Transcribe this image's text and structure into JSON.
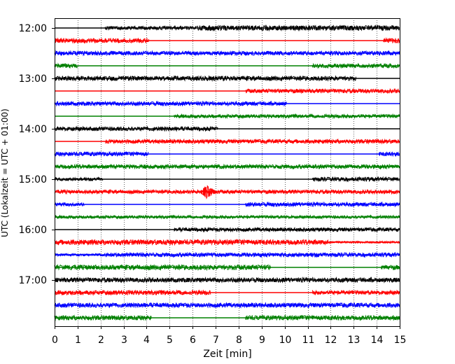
{
  "chart_data": {
    "type": "line",
    "title": "",
    "xlabel": "Zeit  [min]",
    "ylabel": "UTC (Lokalzeit = UTC + 01:00)",
    "xlim": [
      0,
      15
    ],
    "x_ticks": [
      0,
      1,
      2,
      3,
      4,
      5,
      6,
      7,
      8,
      9,
      10,
      11,
      12,
      13,
      14,
      15
    ],
    "x_tick_labels": [
      "0",
      "1",
      "2",
      "3",
      "4",
      "5",
      "6",
      "7",
      "8",
      "9",
      "10",
      "11",
      "12",
      "13",
      "14",
      "15"
    ],
    "y_tick_labels": [
      "12:00",
      "13:00",
      "14:00",
      "15:00",
      "16:00",
      "17:00"
    ],
    "grid": "vertical dotted",
    "legend": "none",
    "colors": [
      "#000000",
      "#ff0000",
      "#0000ff",
      "#008000"
    ],
    "series": [
      {
        "start": "12:00",
        "color": "#000000",
        "segments": [
          [
            0,
            2.2,
            0.25
          ],
          [
            2.2,
            6.2,
            0.7
          ],
          [
            6.2,
            13.1,
            1.0
          ],
          [
            13.1,
            15,
            1.0
          ]
        ]
      },
      {
        "start": "12:15",
        "color": "#ff0000",
        "segments": [
          [
            0,
            4.1,
            0.9
          ],
          [
            4.1,
            14.3,
            0.25
          ],
          [
            14.3,
            15,
            0.9
          ]
        ]
      },
      {
        "start": "12:30",
        "color": "#0000ff",
        "segments": [
          [
            0,
            15,
            0.8
          ]
        ]
      },
      {
        "start": "12:45",
        "color": "#008000",
        "segments": [
          [
            0,
            1.0,
            0.9
          ],
          [
            1.0,
            11.2,
            0.3
          ],
          [
            11.2,
            15,
            0.8
          ]
        ]
      },
      {
        "start": "13:00",
        "color": "#000000",
        "segments": [
          [
            0,
            13.1,
            0.9
          ],
          [
            13.1,
            15,
            0.25
          ]
        ]
      },
      {
        "start": "13:15",
        "color": "#ff0000",
        "segments": [
          [
            0,
            8.3,
            0.25
          ],
          [
            8.3,
            15,
            0.8
          ]
        ]
      },
      {
        "start": "13:30",
        "color": "#0000ff",
        "segments": [
          [
            0,
            10.1,
            0.8
          ],
          [
            10.1,
            15,
            0.25
          ]
        ]
      },
      {
        "start": "13:45",
        "color": "#008000",
        "segments": [
          [
            0,
            5.2,
            0.25
          ],
          [
            5.2,
            15,
            0.7
          ]
        ]
      },
      {
        "start": "14:00",
        "color": "#000000",
        "segments": [
          [
            0,
            7.1,
            0.8
          ],
          [
            7.1,
            15,
            0.25
          ]
        ]
      },
      {
        "start": "14:15",
        "color": "#ff0000",
        "segments": [
          [
            0,
            2.2,
            0.25
          ],
          [
            2.2,
            15,
            0.8
          ]
        ]
      },
      {
        "start": "14:30",
        "color": "#0000ff",
        "segments": [
          [
            0,
            4.1,
            0.8
          ],
          [
            4.1,
            14.1,
            0.3
          ],
          [
            14.1,
            15,
            0.8
          ]
        ]
      },
      {
        "start": "14:45",
        "color": "#008000",
        "segments": [
          [
            0,
            15,
            0.8
          ]
        ]
      },
      {
        "start": "15:00",
        "color": "#000000",
        "segments": [
          [
            0,
            2.1,
            0.6
          ],
          [
            2.1,
            11.2,
            0.25
          ],
          [
            11.2,
            15,
            0.8
          ]
        ]
      },
      {
        "start": "15:15",
        "color": "#ff0000",
        "segments": [
          [
            0,
            15,
            0.75
          ]
        ],
        "event": {
          "x": 6.6,
          "amp": 2.8,
          "width": 0.3
        }
      },
      {
        "start": "15:30",
        "color": "#0000ff",
        "segments": [
          [
            0,
            1.3,
            0.7
          ],
          [
            1.3,
            8.3,
            0.25
          ],
          [
            8.3,
            15,
            0.8
          ]
        ]
      },
      {
        "start": "15:45",
        "color": "#008000",
        "segments": [
          [
            0,
            15,
            0.6
          ]
        ]
      },
      {
        "start": "16:00",
        "color": "#000000",
        "segments": [
          [
            0,
            5.2,
            0.3
          ],
          [
            5.2,
            15,
            0.75
          ]
        ]
      },
      {
        "start": "16:15",
        "color": "#ff0000",
        "segments": [
          [
            0,
            11.9,
            1.0
          ],
          [
            11.9,
            15,
            0.4
          ]
        ]
      },
      {
        "start": "16:30",
        "color": "#0000ff",
        "segments": [
          [
            0,
            2.2,
            0.5
          ],
          [
            2.2,
            15,
            0.8
          ]
        ]
      },
      {
        "start": "16:45",
        "color": "#008000",
        "segments": [
          [
            0,
            9.4,
            1.0
          ],
          [
            9.4,
            14.2,
            0.3
          ],
          [
            14.2,
            15,
            0.9
          ]
        ]
      },
      {
        "start": "17:00",
        "color": "#000000",
        "segments": [
          [
            0,
            15,
            0.9
          ]
        ]
      },
      {
        "start": "17:15",
        "color": "#ff0000",
        "segments": [
          [
            0,
            6.8,
            0.9
          ],
          [
            6.8,
            11.2,
            0.3
          ],
          [
            11.2,
            15,
            0.8
          ]
        ]
      },
      {
        "start": "17:30",
        "color": "#0000ff",
        "segments": [
          [
            0,
            15,
            0.9
          ]
        ]
      },
      {
        "start": "17:45",
        "color": "#008000",
        "segments": [
          [
            0,
            4.2,
            0.9
          ],
          [
            4.2,
            8.3,
            0.3
          ],
          [
            8.3,
            15,
            0.9
          ]
        ]
      }
    ]
  }
}
